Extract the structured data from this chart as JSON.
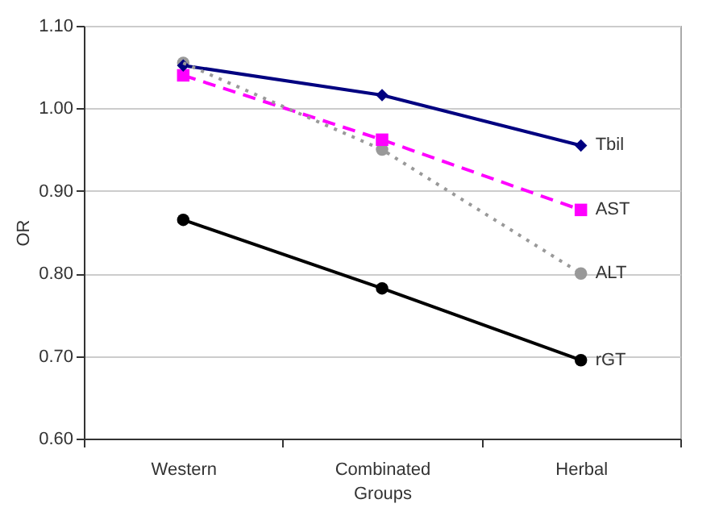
{
  "chart_data": {
    "type": "line",
    "xlabel": "Groups",
    "ylabel": "OR",
    "categories": [
      "Western",
      "Combinated",
      "Herbal"
    ],
    "ylim": [
      0.6,
      1.1
    ],
    "yticks": [
      {
        "value": 0.6,
        "label": "0.60"
      },
      {
        "value": 0.7,
        "label": "0.70"
      },
      {
        "value": 0.8,
        "label": "0.80"
      },
      {
        "value": 0.9,
        "label": "0.90"
      },
      {
        "value": 1.0,
        "label": "1.00"
      },
      {
        "value": 1.1,
        "label": "1.10"
      }
    ],
    "grid": "y",
    "series": [
      {
        "name": "Tbil",
        "color": "#000080",
        "values": [
          1.052,
          1.016,
          0.955
        ],
        "marker": "diamond",
        "line_style": "solid"
      },
      {
        "name": "AST",
        "color": "#ff00ff",
        "values": [
          1.04,
          0.962,
          0.877
        ],
        "marker": "square",
        "line_style": "dashed"
      },
      {
        "name": "ALT",
        "color": "#999999",
        "values": [
          1.055,
          0.95,
          0.8
        ],
        "marker": "circle",
        "line_style": "dotted"
      },
      {
        "name": "rGT",
        "color": "#000000",
        "values": [
          0.865,
          0.782,
          0.695
        ],
        "marker": "circle",
        "line_style": "solid"
      }
    ]
  }
}
